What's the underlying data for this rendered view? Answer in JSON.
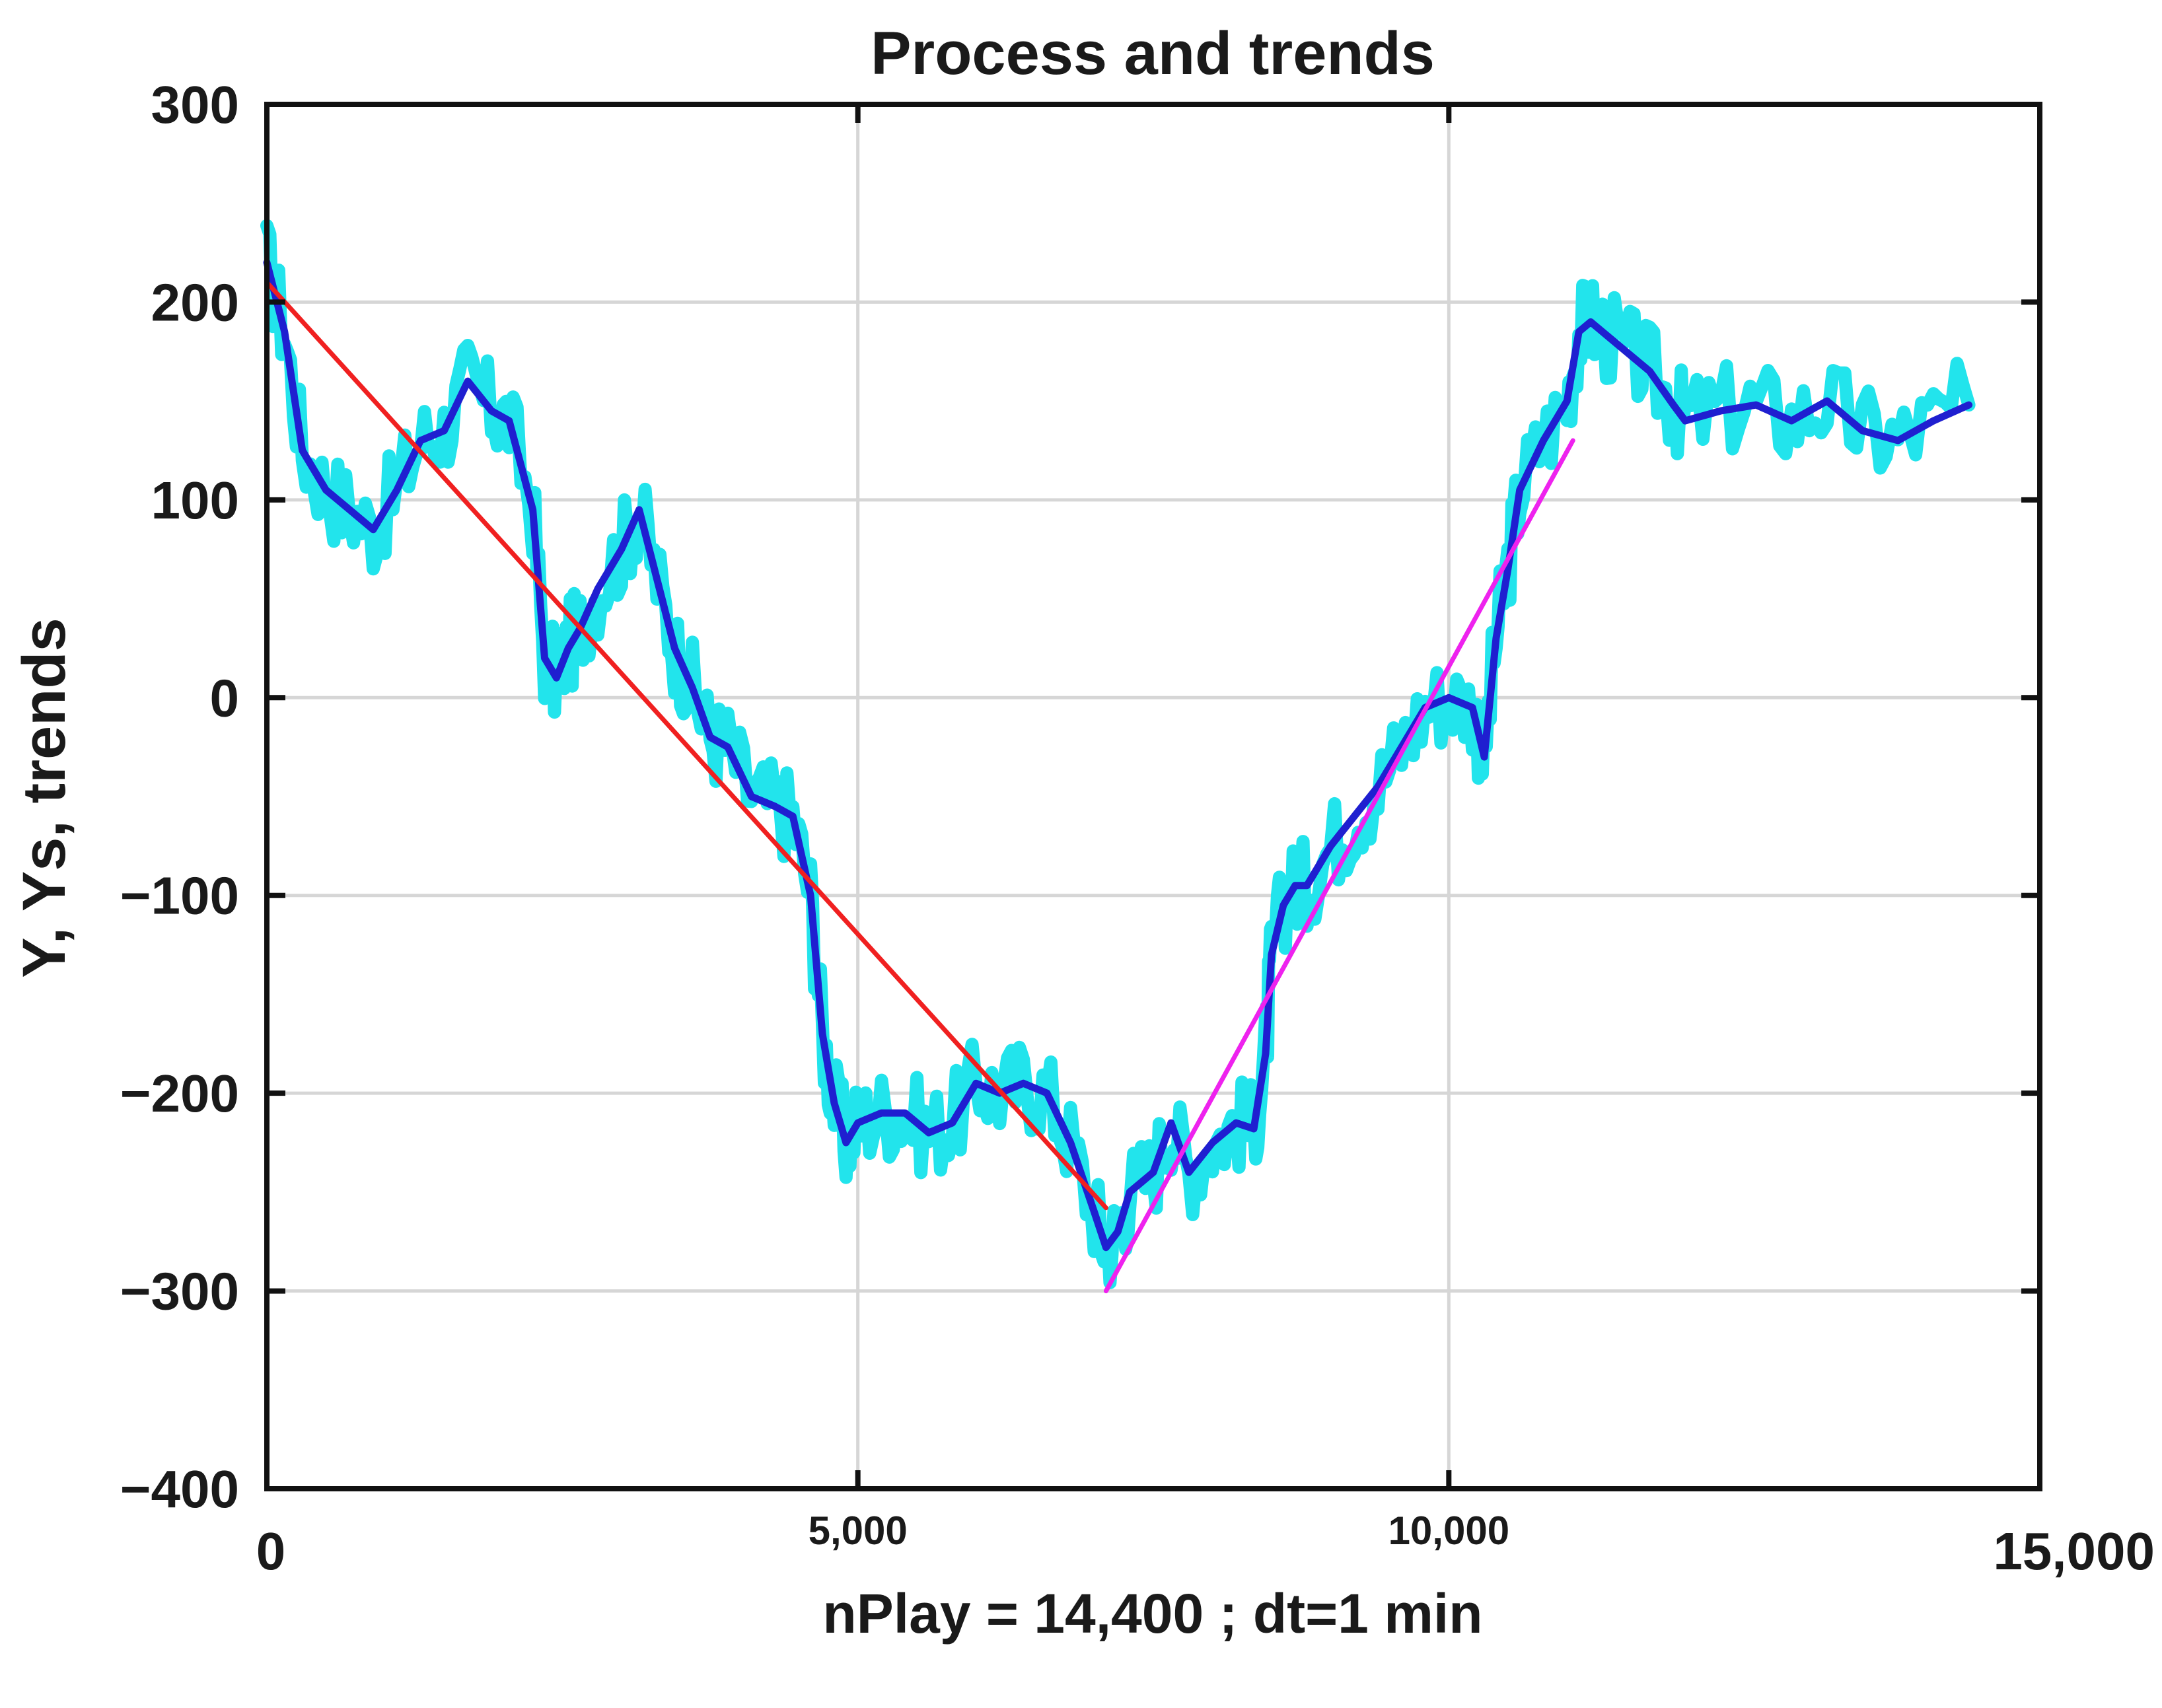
{
  "chart_data": {
    "type": "line",
    "title": "Process and trends",
    "xlabel": "nPlay = 14,400 ;     dt=1 min",
    "ylabel": "Y,  Ys, trends",
    "xlim": [
      0,
      15000
    ],
    "ylim": [
      -400,
      300
    ],
    "x_ticks": [
      0,
      5000,
      10000,
      15000
    ],
    "x_tick_labels": [
      "0",
      "5,000",
      "10,000",
      "15,000"
    ],
    "y_ticks": [
      -400,
      -300,
      -200,
      -100,
      0,
      100,
      200,
      300
    ],
    "y_tick_labels": [
      "−400",
      "−300",
      "−200",
      "−100",
      "0",
      "100",
      "200",
      "300"
    ],
    "grid": true,
    "series": [
      {
        "color": "#22e4ec",
        "style": "noisy-raw",
        "x": [
          0,
          150,
          300,
          500,
          700,
          900,
          1100,
          1300,
          1500,
          1700,
          1900,
          2050,
          2250,
          2350,
          2450,
          2550,
          2650,
          2800,
          3000,
          3150,
          3300,
          3450,
          3600,
          3750,
          3900,
          4100,
          4300,
          4450,
          4600,
          4700,
          4800,
          4900,
          5000,
          5200,
          5400,
          5600,
          5800,
          6000,
          6200,
          6400,
          6600,
          6800,
          7000,
          7100,
          7200,
          7300,
          7500,
          7650,
          7800,
          8000,
          8200,
          8350,
          8450,
          8500,
          8600,
          8700,
          8800,
          9000,
          9200,
          9400,
          9600,
          9800,
          10000,
          10200,
          10300,
          10400,
          10500,
          10600,
          10800,
          11000,
          11100,
          11200,
          11300,
          11500,
          11700,
          11900,
          12000,
          12300,
          12600,
          12900,
          13200,
          13500,
          13800,
          14100,
          14400
        ],
        "y": [
          220,
          185,
          125,
          105,
          95,
          85,
          105,
          130,
          135,
          160,
          145,
          140,
          95,
          20,
          10,
          25,
          35,
          55,
          75,
          95,
          60,
          25,
          5,
          -20,
          -25,
          -50,
          -55,
          -60,
          -100,
          -170,
          -205,
          -225,
          -215,
          -210,
          -210,
          -220,
          -215,
          -195,
          -200,
          -195,
          -200,
          -225,
          -260,
          -278,
          -270,
          -250,
          -240,
          -215,
          -240,
          -225,
          -215,
          -218,
          -180,
          -130,
          -105,
          -95,
          -95,
          -75,
          -60,
          -45,
          -25,
          -5,
          0,
          -5,
          -30,
          30,
          65,
          105,
          130,
          150,
          185,
          190,
          185,
          175,
          165,
          148,
          140,
          145,
          148,
          140,
          150,
          135,
          130,
          140,
          148
        ]
      },
      {
        "color": "#1f1fd0",
        "style": "smoothed",
        "x": [
          0,
          150,
          300,
          500,
          700,
          900,
          1100,
          1300,
          1500,
          1700,
          1900,
          2050,
          2250,
          2350,
          2450,
          2550,
          2650,
          2800,
          3000,
          3150,
          3300,
          3450,
          3600,
          3750,
          3900,
          4100,
          4300,
          4450,
          4600,
          4700,
          4800,
          4900,
          5000,
          5200,
          5400,
          5600,
          5800,
          6000,
          6200,
          6400,
          6600,
          6800,
          7000,
          7100,
          7200,
          7300,
          7500,
          7650,
          7800,
          8000,
          8200,
          8350,
          8450,
          8500,
          8600,
          8700,
          8800,
          9000,
          9200,
          9400,
          9600,
          9800,
          10000,
          10200,
          10300,
          10400,
          10500,
          10600,
          10800,
          11000,
          11100,
          11200,
          11300,
          11500,
          11700,
          11900,
          12000,
          12300,
          12600,
          12900,
          13200,
          13500,
          13800,
          14100,
          14400
        ],
        "y": [
          220,
          185,
          125,
          105,
          95,
          85,
          105,
          130,
          135,
          160,
          145,
          140,
          95,
          20,
          10,
          25,
          35,
          55,
          75,
          95,
          60,
          25,
          5,
          -20,
          -25,
          -50,
          -55,
          -60,
          -100,
          -170,
          -205,
          -225,
          -215,
          -210,
          -210,
          -220,
          -215,
          -195,
          -200,
          -195,
          -200,
          -225,
          -260,
          -278,
          -270,
          -250,
          -240,
          -215,
          -240,
          -225,
          -215,
          -218,
          -180,
          -130,
          -105,
          -95,
          -95,
          -75,
          -60,
          -45,
          -25,
          -5,
          0,
          -5,
          -30,
          30,
          65,
          105,
          130,
          150,
          185,
          190,
          185,
          175,
          165,
          148,
          140,
          145,
          148,
          140,
          150,
          135,
          130,
          140,
          148
        ]
      },
      {
        "color": "#f02020",
        "style": "trend",
        "x": [
          0,
          7100
        ],
        "y": [
          210,
          -258
        ]
      },
      {
        "color": "#ee22ee",
        "style": "trend",
        "x": [
          7100,
          11050
        ],
        "y": [
          -300,
          130
        ]
      }
    ]
  }
}
